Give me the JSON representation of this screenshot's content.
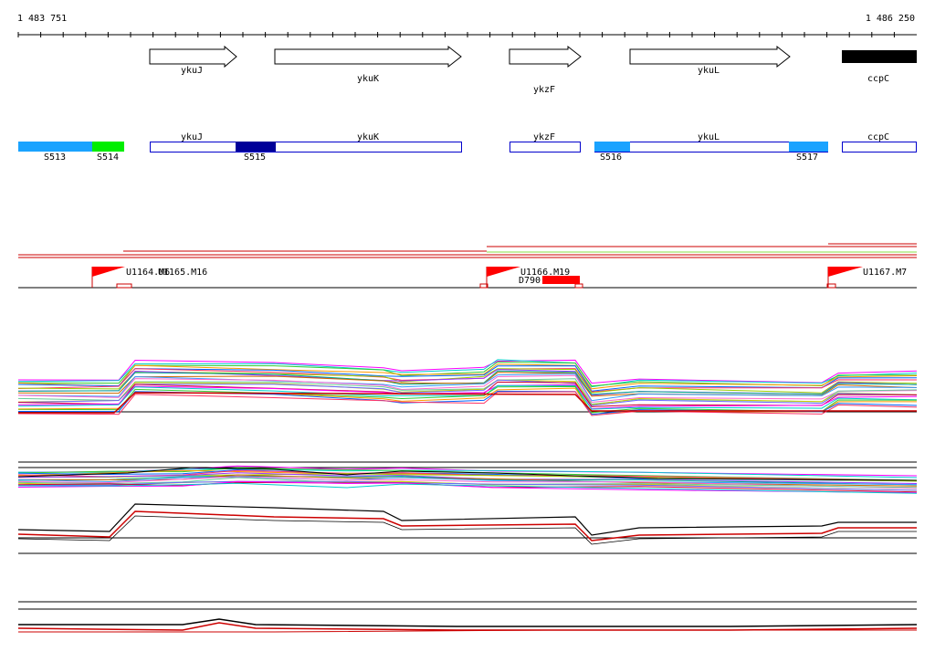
{
  "coords": {
    "start_label": "1 483 751",
    "end_label": "1 486 250"
  },
  "genes": [
    {
      "name": "ykuJ",
      "strand": "+",
      "start": 0.147,
      "end": 0.243
    },
    {
      "name": "ykuK",
      "strand": "+",
      "start": 0.286,
      "end": 0.494
    },
    {
      "name": "ykzF",
      "strand": "+",
      "start": 0.547,
      "end": 0.626
    },
    {
      "name": "ykuL",
      "strand": "+",
      "start": 0.68,
      "end": 0.862
    },
    {
      "name": "ccpC",
      "strand": "+",
      "start": 0.917,
      "end": 1.0
    }
  ],
  "segments": [
    {
      "name": "S513"
    },
    {
      "name": "S514"
    },
    {
      "name": "S515"
    },
    {
      "name": "S516"
    },
    {
      "name": "S517"
    }
  ],
  "tss_markers": [
    {
      "label": "U1164.M6"
    },
    {
      "label": "U1165.M16"
    },
    {
      "label": "U1166.M19"
    },
    {
      "label": "U1167.M7"
    }
  ],
  "term_markers": [
    {
      "label": "D790"
    }
  ],
  "colors": {
    "segment_light": "#1aa3ff",
    "segment_green": "#00ee00",
    "segment_dark": "#000099",
    "gene_outline": "#0000cc",
    "promoter": "#ff0000"
  }
}
